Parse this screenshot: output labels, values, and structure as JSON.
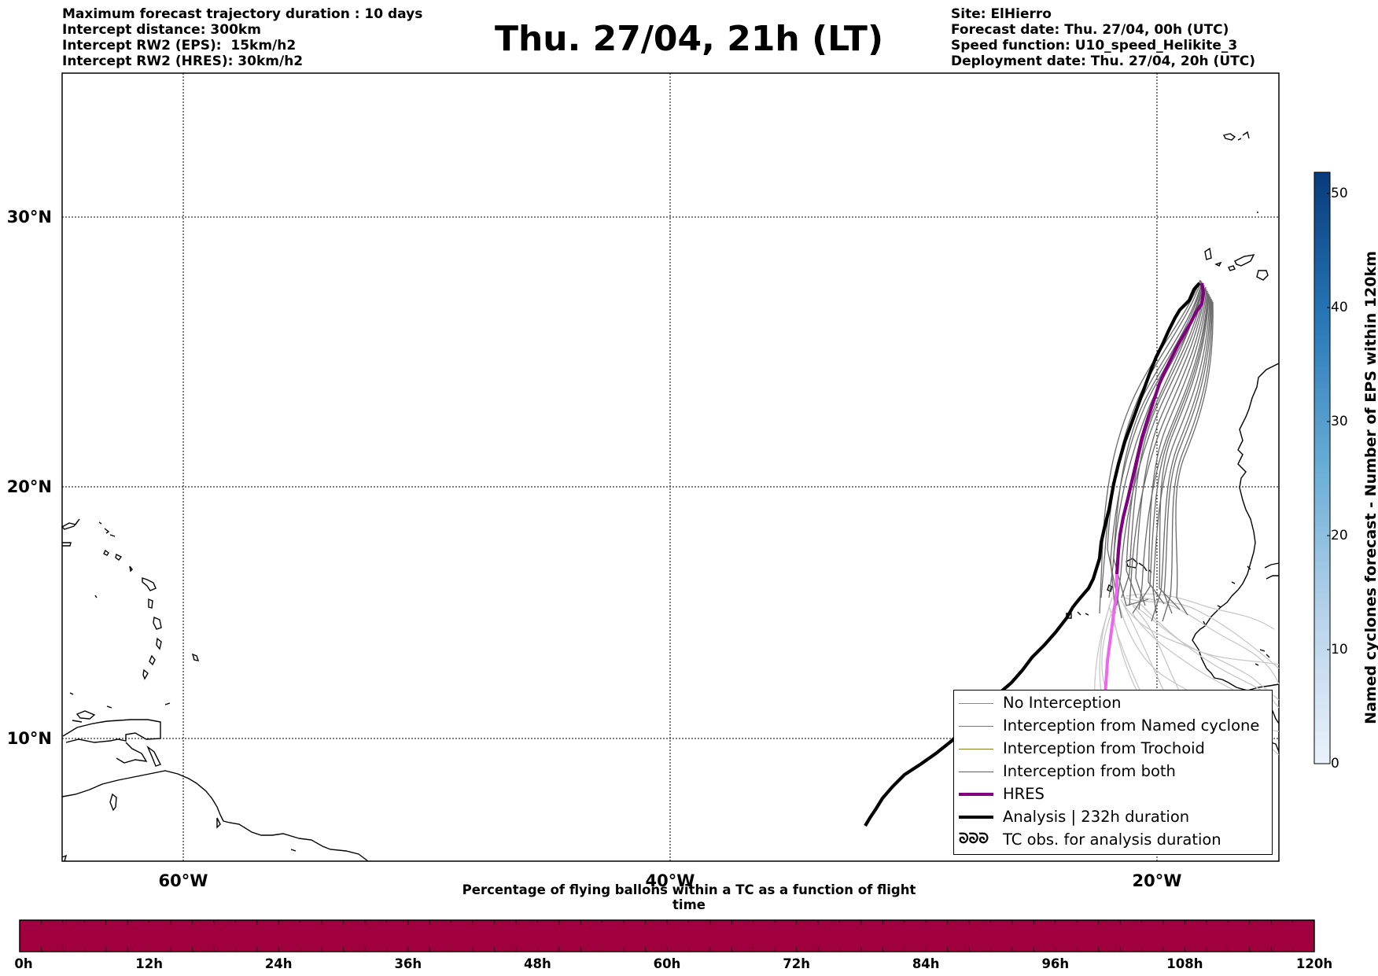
{
  "header_left": [
    "Maximum forecast trajectory duration : 10 days",
    "Intercept distance: 300km",
    "Intercept RW2 (EPS):  15km/h2",
    "Intercept RW2 (HRES): 30km/h2"
  ],
  "title": "Thu. 27/04, 21h (LT)",
  "header_right": [
    "Site: ElHierro",
    "Forecast date: Thu. 27/04, 00h (UTC)",
    "Speed function: U10_speed_Helikite_3",
    "Deployment date: Thu. 27/04, 20h (UTC)"
  ],
  "map": {
    "lat_labels": [
      "30°N",
      "20°N",
      "10°N"
    ],
    "lon_labels": [
      "60°W",
      "40°W",
      "20°W"
    ],
    "extent": {
      "lon_min": -65,
      "lon_max": -15,
      "lat_min": 5.3,
      "lat_max": 34.6
    },
    "hres_color": "#800080",
    "analysis_color": "#000000",
    "eps_color": "#666666"
  },
  "legend": {
    "items": [
      {
        "label": "No Interception",
        "color": "#888888",
        "style": "thin"
      },
      {
        "label": "Interception from Named cyclone",
        "color": "#e8541e",
        "style": "thin"
      },
      {
        "label": "Interception from Trochoid",
        "color": "#808020",
        "style": "thin"
      },
      {
        "label": "Interception from both",
        "color": "#1f8a2a",
        "style": "thin"
      },
      {
        "label": "HRES",
        "color": "#800080",
        "style": "thick"
      },
      {
        "label": "Analysis | 232h duration",
        "color": "#000000",
        "style": "thick"
      },
      {
        "label": "TC obs. for analysis duration",
        "color": "#000000",
        "style": "symbol",
        "symbol": "ᘐᘐᘐ"
      }
    ]
  },
  "colorbar": {
    "label": "Named cyclones forecast - Number of EPS within 120km",
    "ticks": [
      "0",
      "10",
      "20",
      "30",
      "40",
      "50"
    ]
  },
  "hbar": {
    "label": "Percentage of flying ballons within a TC as a function of flight time",
    "color": "#a0003e",
    "ticks": [
      "0h",
      "12h",
      "24h",
      "36h",
      "48h",
      "60h",
      "72h",
      "84h",
      "96h",
      "108h",
      "120h"
    ]
  }
}
